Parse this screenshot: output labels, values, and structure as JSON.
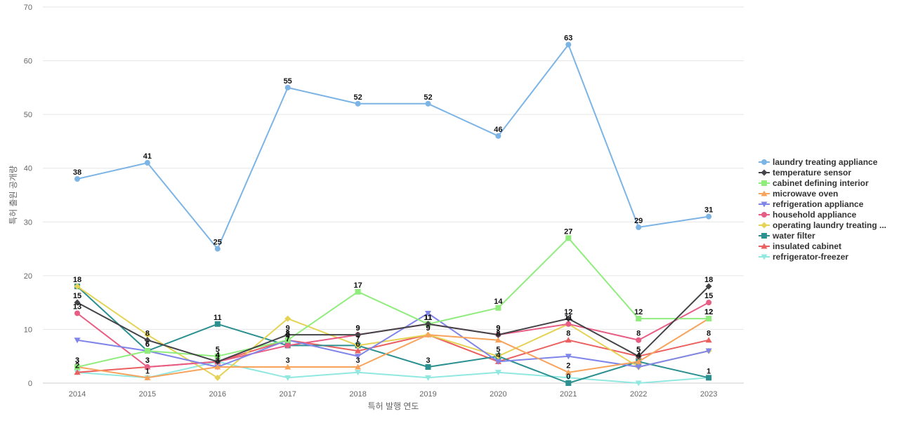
{
  "chart_data": {
    "type": "line",
    "title": "",
    "xlabel": "특허 발행 연도",
    "ylabel": "특허 출원 공개량",
    "ylim": [
      0,
      70
    ],
    "yticks": [
      0,
      10,
      20,
      30,
      40,
      50,
      60,
      70
    ],
    "categories": [
      "2014",
      "2015",
      "2016",
      "2017",
      "2018",
      "2019",
      "2020",
      "2021",
      "2022",
      "2023"
    ],
    "grid": true,
    "legend_position": "right",
    "series": [
      {
        "name": "laundry treating appliance",
        "legend_label": "laundry treating appliance",
        "color": "#7cb4e6",
        "marker": "circle",
        "labels": true,
        "values": [
          38,
          41,
          25,
          55,
          52,
          52,
          46,
          63,
          29,
          31
        ]
      },
      {
        "name": "temperature sensor",
        "legend_label": "temperature sensor",
        "color": "#434348",
        "marker": "diamond",
        "labels": true,
        "values": [
          15,
          8,
          4,
          9,
          9,
          11,
          9,
          12,
          5,
          18
        ]
      },
      {
        "name": "cabinet defining interior",
        "legend_label": "cabinet defining interior",
        "color": "#90ed7d",
        "marker": "square",
        "labels": true,
        "values": [
          3,
          6,
          5,
          8,
          17,
          11,
          14,
          27,
          12,
          12
        ]
      },
      {
        "name": "microwave oven",
        "legend_label": "microwave oven",
        "color": "#f7a35c",
        "marker": "triangle",
        "labels": true,
        "values": [
          3,
          1,
          3,
          3,
          3,
          9,
          8,
          2,
          4,
          12
        ]
      },
      {
        "name": "refrigeration appliance",
        "legend_label": "refrigeration appliance",
        "color": "#8085e9",
        "marker": "triangle-down",
        "labels": false,
        "values": [
          8,
          6,
          3,
          8,
          5,
          13,
          4,
          5,
          3,
          6
        ]
      },
      {
        "name": "household appliance",
        "legend_label": "household appliance",
        "color": "#e85d84",
        "marker": "circle",
        "labels": true,
        "values": [
          13,
          3,
          4,
          7,
          9,
          11,
          9,
          11,
          8,
          15
        ]
      },
      {
        "name": "operating laundry treating ...",
        "legend_label": "operating laundry treating ...",
        "color": "#e4d354",
        "marker": "diamond",
        "labels": false,
        "values": [
          18,
          9,
          1,
          12,
          7,
          9,
          5,
          11,
          3,
          6
        ]
      },
      {
        "name": "water filter",
        "legend_label": "water filter",
        "color": "#2b908f",
        "marker": "square",
        "labels": true,
        "values": [
          18,
          6,
          11,
          7,
          7,
          3,
          5,
          0,
          4,
          1
        ]
      },
      {
        "name": "insulated cabinet",
        "legend_label": "insulated cabinet",
        "color": "#ec5f5f",
        "marker": "triangle",
        "labels": true,
        "values": [
          2,
          3,
          4,
          8,
          6,
          9,
          4,
          8,
          5,
          8
        ]
      },
      {
        "name": "refrigerator-freezer",
        "legend_label": "refrigerator-freezer",
        "color": "#91e8e1",
        "marker": "triangle-down",
        "labels": false,
        "values": [
          2,
          1,
          4,
          1,
          2,
          1,
          2,
          1,
          0,
          1
        ]
      }
    ]
  }
}
